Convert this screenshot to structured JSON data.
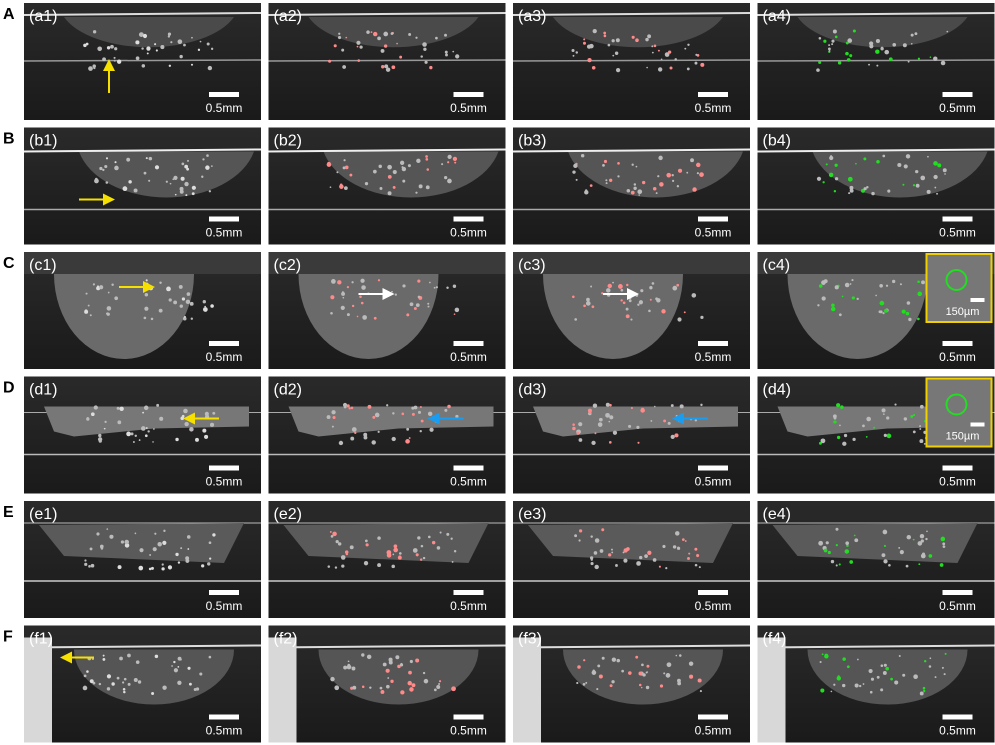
{
  "rows": [
    {
      "letter": "A",
      "panels": [
        {
          "label": "(a1)",
          "scale": "0.5mm"
        },
        {
          "label": "(a2)",
          "scale": "0.5mm"
        },
        {
          "label": "(a3)",
          "scale": "0.5mm"
        },
        {
          "label": "(a4)",
          "scale": "0.5mm"
        }
      ]
    },
    {
      "letter": "B",
      "panels": [
        {
          "label": "(b1)",
          "scale": "0.5mm"
        },
        {
          "label": "(b2)",
          "scale": "0.5mm"
        },
        {
          "label": "(b3)",
          "scale": "0.5mm"
        },
        {
          "label": "(b4)",
          "scale": "0.5mm"
        }
      ]
    },
    {
      "letter": "C",
      "panels": [
        {
          "label": "(c1)",
          "scale": "0.5mm"
        },
        {
          "label": "(c2)",
          "scale": "0.5mm"
        },
        {
          "label": "(c3)",
          "scale": "0.5mm"
        },
        {
          "label": "(c4)",
          "scale": "0.5mm",
          "inset": "150µm"
        }
      ]
    },
    {
      "letter": "D",
      "panels": [
        {
          "label": "(d1)",
          "scale": "0.5mm"
        },
        {
          "label": "(d2)",
          "scale": "0.5mm"
        },
        {
          "label": "(d3)",
          "scale": "0.5mm"
        },
        {
          "label": "(d4)",
          "scale": "0.5mm",
          "inset": "150µm"
        }
      ]
    },
    {
      "letter": "E",
      "panels": [
        {
          "label": "(e1)",
          "scale": "0.5mm"
        },
        {
          "label": "(e2)",
          "scale": "0.5mm"
        },
        {
          "label": "(e3)",
          "scale": "0.5mm"
        },
        {
          "label": "(e4)",
          "scale": "0.5mm"
        }
      ]
    },
    {
      "letter": "F",
      "panels": [
        {
          "label": "(f1)",
          "scale": "0.5mm"
        },
        {
          "label": "(f2)",
          "scale": "0.5mm"
        },
        {
          "label": "(f3)",
          "scale": "0.5mm"
        },
        {
          "label": "(f4)",
          "scale": "0.5mm"
        }
      ]
    }
  ]
}
